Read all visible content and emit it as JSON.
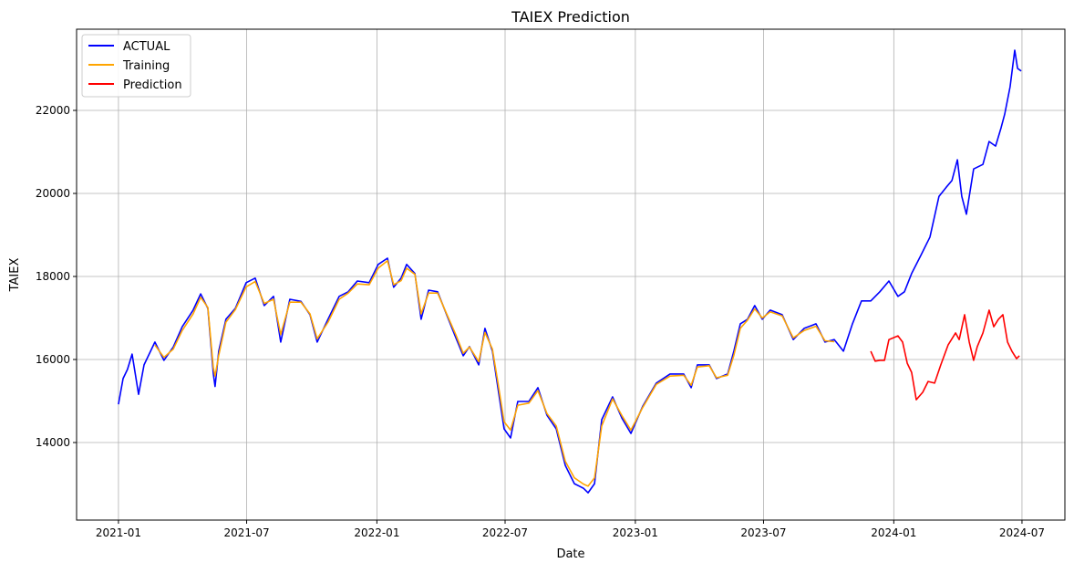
{
  "chart_data": {
    "type": "line",
    "title": "TAIEX Prediction",
    "xlabel": "Date",
    "ylabel": "TAIEX",
    "x_unit": "decimal year",
    "xlim": [
      2020.838,
      2024.662
    ],
    "ylim": [
      12132,
      23956
    ],
    "grid": true,
    "legend_position": "top-left",
    "x_ticks": [
      {
        "value": 2021.0,
        "label": "2021-01"
      },
      {
        "value": 2021.496,
        "label": "2021-07"
      },
      {
        "value": 2022.0,
        "label": "2022-01"
      },
      {
        "value": 2022.496,
        "label": "2022-07"
      },
      {
        "value": 2023.0,
        "label": "2023-01"
      },
      {
        "value": 2023.496,
        "label": "2023-07"
      },
      {
        "value": 2024.0,
        "label": "2024-01"
      },
      {
        "value": 2024.496,
        "label": "2024-07"
      }
    ],
    "y_ticks": [
      {
        "value": 14000,
        "label": "14000"
      },
      {
        "value": 16000,
        "label": "16000"
      },
      {
        "value": 18000,
        "label": "18000"
      },
      {
        "value": 20000,
        "label": "20000"
      },
      {
        "value": 22000,
        "label": "22000"
      }
    ],
    "series": [
      {
        "name": "ACTUAL",
        "color": "#0000ff",
        "x": [
          2021.0,
          2021.018,
          2021.035,
          2021.053,
          2021.078,
          2021.099,
          2021.141,
          2021.176,
          2021.212,
          2021.247,
          2021.289,
          2021.318,
          2021.346,
          2021.367,
          2021.374,
          2021.388,
          2021.416,
          2021.452,
          2021.494,
          2021.529,
          2021.564,
          2021.6,
          2021.628,
          2021.663,
          2021.706,
          2021.741,
          2021.769,
          2021.811,
          2021.854,
          2021.889,
          2021.924,
          2021.97,
          2022.005,
          2022.041,
          2022.065,
          2022.094,
          2022.115,
          2022.147,
          2022.171,
          2022.2,
          2022.235,
          2022.27,
          2022.305,
          2022.334,
          2022.358,
          2022.394,
          2022.418,
          2022.447,
          2022.468,
          2022.492,
          2022.517,
          2022.545,
          2022.588,
          2022.623,
          2022.658,
          2022.694,
          2022.729,
          2022.764,
          2022.799,
          2022.817,
          2022.842,
          2022.87,
          2022.912,
          2022.948,
          2022.983,
          2023.029,
          2023.081,
          2023.134,
          2023.187,
          2023.216,
          2023.24,
          2023.286,
          2023.314,
          2023.357,
          2023.381,
          2023.406,
          2023.434,
          2023.462,
          2023.491,
          2023.522,
          2023.568,
          2023.611,
          2023.653,
          2023.699,
          2023.734,
          2023.77,
          2023.805,
          2023.84,
          2023.875,
          2023.911,
          2023.946,
          2023.981,
          2024.016,
          2024.041,
          2024.069,
          2024.105,
          2024.14,
          2024.175,
          2024.203,
          2024.225,
          2024.246,
          2024.263,
          2024.281,
          2024.309,
          2024.345,
          2024.369,
          2024.394,
          2024.415,
          2024.429,
          2024.45,
          2024.468,
          2024.479,
          2024.493
        ],
        "y": [
          14920,
          15540,
          15760,
          16130,
          15160,
          15870,
          16420,
          15980,
          16300,
          16790,
          17190,
          17580,
          17230,
          15650,
          15350,
          16200,
          16970,
          17230,
          17850,
          17960,
          17300,
          17520,
          16420,
          17450,
          17400,
          17080,
          16420,
          16970,
          17520,
          17630,
          17890,
          17850,
          18290,
          18440,
          17740,
          17960,
          18290,
          18070,
          16970,
          17670,
          17630,
          17080,
          16530,
          16090,
          16310,
          15870,
          16750,
          16200,
          15320,
          14330,
          14110,
          14990,
          14990,
          15320,
          14660,
          14330,
          13450,
          13010,
          12900,
          12790,
          13010,
          14550,
          15100,
          14590,
          14220,
          14880,
          15430,
          15650,
          15650,
          15320,
          15870,
          15870,
          15540,
          15650,
          16200,
          16860,
          16970,
          17300,
          16970,
          17190,
          17080,
          16480,
          16750,
          16860,
          16420,
          16480,
          16200,
          16860,
          17410,
          17410,
          17630,
          17890,
          17520,
          17630,
          18070,
          18510,
          18950,
          19930,
          20150,
          20310,
          20810,
          19930,
          19500,
          20590,
          20700,
          21250,
          21140,
          21580,
          21910,
          22570,
          23450,
          23010,
          22950
        ]
      },
      {
        "name": "Training",
        "color": "#ffa500",
        "x": [
          2021.141,
          2021.176,
          2021.212,
          2021.247,
          2021.289,
          2021.318,
          2021.346,
          2021.367,
          2021.374,
          2021.388,
          2021.416,
          2021.452,
          2021.494,
          2021.529,
          2021.564,
          2021.6,
          2021.628,
          2021.663,
          2021.706,
          2021.741,
          2021.769,
          2021.811,
          2021.854,
          2021.889,
          2021.924,
          2021.97,
          2022.005,
          2022.041,
          2022.065,
          2022.094,
          2022.115,
          2022.147,
          2022.171,
          2022.2,
          2022.235,
          2022.27,
          2022.305,
          2022.334,
          2022.358,
          2022.394,
          2022.418,
          2022.447,
          2022.468,
          2022.492,
          2022.517,
          2022.545,
          2022.588,
          2022.623,
          2022.658,
          2022.694,
          2022.729,
          2022.764,
          2022.799,
          2022.817,
          2022.842,
          2022.87,
          2022.912,
          2022.948,
          2022.983,
          2023.029,
          2023.081,
          2023.134,
          2023.187,
          2023.216,
          2023.24,
          2023.286,
          2023.314,
          2023.357,
          2023.381,
          2023.406,
          2023.434,
          2023.462,
          2023.491,
          2023.522,
          2023.568,
          2023.611,
          2023.653,
          2023.699,
          2023.734,
          2023.77
        ],
        "y": [
          16350,
          16050,
          16250,
          16700,
          17100,
          17500,
          17250,
          15800,
          15600,
          16100,
          16900,
          17200,
          17750,
          17880,
          17350,
          17450,
          16600,
          17380,
          17380,
          17100,
          16500,
          16900,
          17450,
          17600,
          17820,
          17800,
          18200,
          18380,
          17800,
          17900,
          18200,
          18050,
          17100,
          17600,
          17600,
          17100,
          16600,
          16150,
          16300,
          15950,
          16650,
          16250,
          15450,
          14500,
          14300,
          14900,
          14950,
          15250,
          14700,
          14400,
          13550,
          13150,
          13000,
          12950,
          13150,
          14400,
          15050,
          14650,
          14300,
          14850,
          15400,
          15600,
          15620,
          15380,
          15820,
          15850,
          15560,
          15620,
          16100,
          16750,
          16950,
          17220,
          17000,
          17150,
          17050,
          16520,
          16700,
          16800,
          16450,
          16430
        ]
      },
      {
        "name": "Prediction",
        "color": "#ff0000",
        "x": [
          2023.911,
          2023.928,
          2023.946,
          2023.964,
          2023.981,
          2024.016,
          2024.034,
          2024.052,
          2024.069,
          2024.087,
          2024.112,
          2024.133,
          2024.158,
          2024.182,
          2024.21,
          2024.239,
          2024.253,
          2024.274,
          2024.292,
          2024.309,
          2024.323,
          2024.345,
          2024.369,
          2024.387,
          2024.405,
          2024.422,
          2024.44,
          2024.457,
          2024.475,
          2024.486
        ],
        "y": [
          16200,
          15960,
          15980,
          15980,
          16480,
          16570,
          16420,
          15910,
          15690,
          15030,
          15210,
          15470,
          15430,
          15870,
          16350,
          16640,
          16480,
          17080,
          16420,
          15980,
          16310,
          16640,
          17190,
          16790,
          16970,
          17080,
          16420,
          16200,
          16020,
          16090
        ]
      }
    ]
  }
}
